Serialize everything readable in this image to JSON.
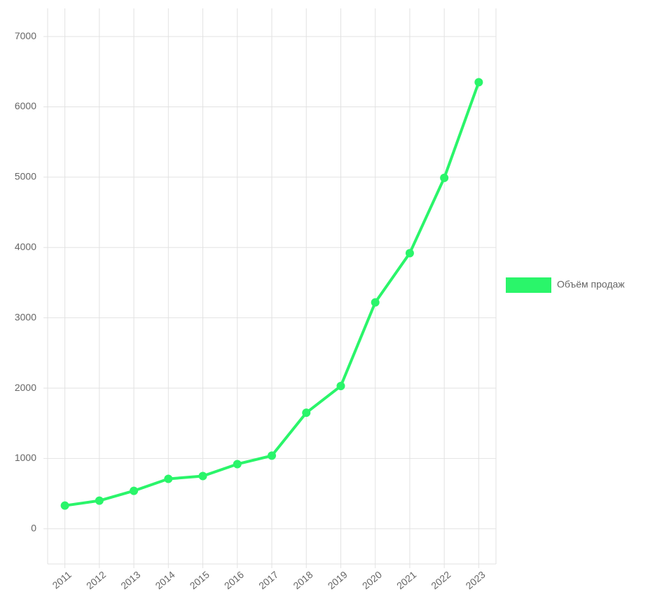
{
  "chart_data": {
    "type": "line",
    "categories": [
      "2011",
      "2012",
      "2013",
      "2014",
      "2015",
      "2016",
      "2017",
      "2018",
      "2019",
      "2020",
      "2021",
      "2022",
      "2023"
    ],
    "series": [
      {
        "name": "Объём продаж",
        "color": "#2af56a",
        "values": [
          330,
          400,
          540,
          710,
          750,
          920,
          1040,
          1650,
          2030,
          3220,
          3920,
          4990,
          6350
        ]
      }
    ],
    "ylim": [
      -500,
      7400
    ],
    "yticks": [
      0,
      1000,
      2000,
      3000,
      4000,
      5000,
      6000,
      7000
    ],
    "grid": true,
    "legend": "right"
  }
}
